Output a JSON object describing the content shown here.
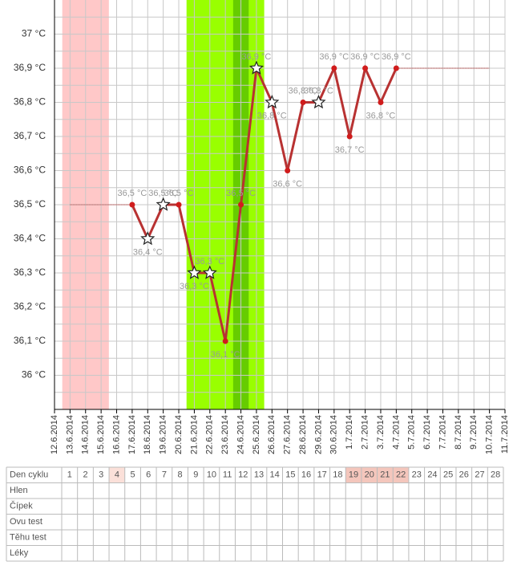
{
  "chart_data": {
    "type": "line",
    "categories": [
      "12.6.2014",
      "13.6.2014",
      "14.6.2014",
      "15.6.2014",
      "16.6.2014",
      "17.6.2014",
      "18.6.2014",
      "19.6.2014",
      "20.6.2014",
      "21.6.2014",
      "22.6.2014",
      "23.6.2014",
      "24.6.2014",
      "25.6.2014",
      "26.6.2014",
      "27.6.2014",
      "28.6.2014",
      "29.6.2014",
      "30.6.2014",
      "1.7.2014",
      "2.7.2014",
      "3.7.2014",
      "4.7.2014",
      "5.7.2014",
      "6.7.2014",
      "7.7.2014",
      "8.7.2014",
      "9.7.2014",
      "10.7.2014",
      "11.7.2014"
    ],
    "series": [
      {
        "color": "#b83232",
        "point_color": "#d01c1c",
        "values": [
          null,
          null,
          null,
          null,
          null,
          36.5,
          36.4,
          36.5,
          36.5,
          36.3,
          36.3,
          36.1,
          36.5,
          36.9,
          36.8,
          36.6,
          36.8,
          36.8,
          36.9,
          36.7,
          36.9,
          36.8,
          36.9,
          null,
          null,
          null,
          null,
          null,
          null,
          null
        ],
        "value_labels": [
          null,
          null,
          null,
          null,
          null,
          "36,5 °C",
          "36,4 °C",
          "36,5 °C",
          "36,5 °C",
          "36,3 °C",
          "36,3 °C",
          "36,1 °C",
          "36,5 °C",
          "36,9 °C",
          "36,8 °C",
          "36,6 °C",
          "36,8 °C",
          "36,8 °C",
          "36,9 °C",
          "36,7 °C",
          "36,9 °C",
          "36,8 °C",
          "36,9 °C",
          null,
          null,
          null,
          null,
          null,
          null,
          null
        ],
        "markers": [
          null,
          null,
          null,
          null,
          null,
          "dot",
          "star",
          "star",
          "dot",
          "star",
          "star",
          "dot",
          "dot",
          "star",
          "star",
          "dot",
          "dot",
          "star",
          "dot",
          "dot",
          "dot",
          "dot",
          "dot",
          null,
          null,
          null,
          null,
          null,
          null,
          null
        ]
      }
    ],
    "reference_lines": [
      {
        "value": 36.5,
        "from": "13.6.2014",
        "to": "17.6.2014",
        "color": "#c06060"
      },
      {
        "value": 36.9,
        "from": "4.7.2014",
        "to": "10.7.2014",
        "color": "#c06060"
      }
    ],
    "bands": [
      {
        "from": "13.6.2014",
        "to": "15.6.2014",
        "color": "#ffc8c8"
      },
      {
        "from": "21.6.2014",
        "to": "25.6.2014",
        "color": "#99ff00"
      },
      {
        "from": "24.6.2014",
        "to": "24.6.2014",
        "color": "#66cc00"
      }
    ],
    "ylim": [
      35.9,
      37.1
    ],
    "yticks": [
      {
        "value": 36,
        "label": "36 °C"
      },
      {
        "value": 36.1,
        "label": "36,1 °C"
      },
      {
        "value": 36.2,
        "label": "36,2 °C"
      },
      {
        "value": 36.3,
        "label": "36,3 °C"
      },
      {
        "value": 36.4,
        "label": "36,4 °C"
      },
      {
        "value": 36.5,
        "label": "36,5 °C"
      },
      {
        "value": 36.6,
        "label": "36,6 °C"
      },
      {
        "value": 36.7,
        "label": "36,7 °C"
      },
      {
        "value": 36.8,
        "label": "36,8 °C"
      },
      {
        "value": 36.9,
        "label": "36,9 °C"
      },
      {
        "value": 37,
        "label": "37 °C"
      }
    ],
    "grid": true
  },
  "table": {
    "header": "Den cyklu",
    "days": [
      1,
      2,
      3,
      4,
      5,
      6,
      7,
      8,
      9,
      10,
      11,
      12,
      13,
      14,
      15,
      16,
      17,
      18,
      19,
      20,
      21,
      22,
      23,
      24,
      25,
      26,
      27,
      28
    ],
    "highlight_light": [
      4
    ],
    "highlight": [
      19,
      20,
      21,
      22
    ],
    "rows": [
      "Hlen",
      "Čípek",
      "Ovu test",
      "Těhu test",
      "Léky"
    ]
  }
}
